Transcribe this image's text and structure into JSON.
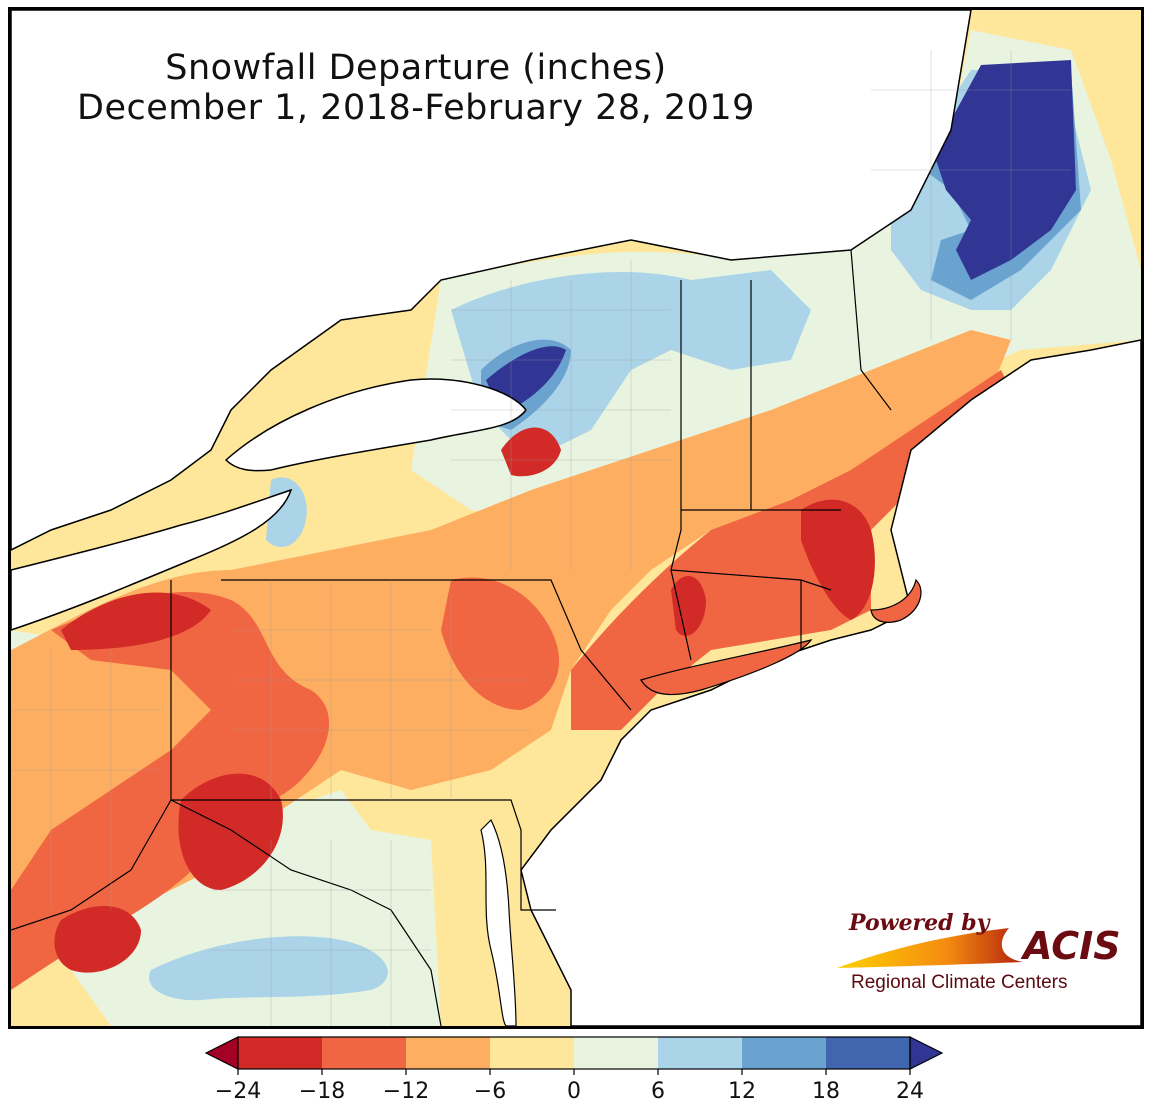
{
  "title": {
    "line1": "Snowfall Departure (inches)",
    "line2": "December 1, 2018-February 28, 2019"
  },
  "logo": {
    "powered_by": "Powered by",
    "name": "ACIS",
    "subtitle": "Regional Climate Centers"
  },
  "colorbar": {
    "ticks": [
      "−24",
      "−18",
      "−12",
      "−6",
      "0",
      "6",
      "12",
      "18",
      "24"
    ],
    "bins": [
      {
        "range": "below -24",
        "color": "#a50026"
      },
      {
        "range": "-24 to -18",
        "color": "#d22b27"
      },
      {
        "range": "-18 to -12",
        "color": "#f16642"
      },
      {
        "range": "-12 to -6",
        "color": "#fdae61"
      },
      {
        "range": "-6 to 0",
        "color": "#fee79a"
      },
      {
        "range": "0 to 6",
        "color": "#e9f4e0"
      },
      {
        "range": "6 to 12",
        "color": "#abd4e8"
      },
      {
        "range": "12 to 18",
        "color": "#6aa3cf"
      },
      {
        "range": "18 to 24",
        "color": "#4166b0"
      },
      {
        "range": "above 24",
        "color": "#313695"
      }
    ]
  },
  "colors": {
    "lake_ocean": "#ffffff",
    "border": "#000000",
    "county_lines": "#9a9a9a",
    "logo_text": "#6b0b12"
  }
}
